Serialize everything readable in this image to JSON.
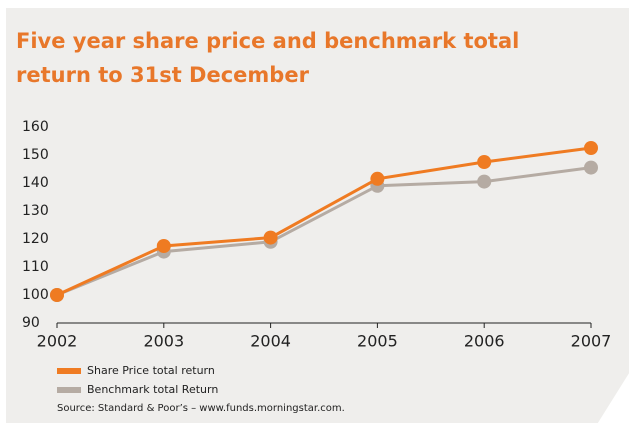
{
  "chart_data": {
    "type": "line",
    "title": "Five year share price and benchmark total return to 31st December",
    "x": [
      2002,
      2003,
      2004,
      2005,
      2006,
      2007
    ],
    "xlim": [
      2002,
      2007
    ],
    "xticks": [
      2002,
      2003,
      2004,
      2005,
      2006,
      2007
    ],
    "ylim": [
      90,
      160
    ],
    "yticks": [
      90,
      100,
      110,
      120,
      130,
      140,
      150,
      160
    ],
    "grid": false,
    "legend": "bottom",
    "series": [
      {
        "name": "Share Price total return",
        "color": "#ef7b22",
        "values": [
          100,
          117.5,
          120.5,
          141.5,
          147.5,
          152.5
        ]
      },
      {
        "name": "Benchmark total Return",
        "color": "#b5aba3",
        "values": [
          100,
          115.5,
          119,
          139,
          140.5,
          145.5
        ]
      }
    ],
    "source": "Source: Standard & Poor’s – www.funds.morningstar.com."
  }
}
